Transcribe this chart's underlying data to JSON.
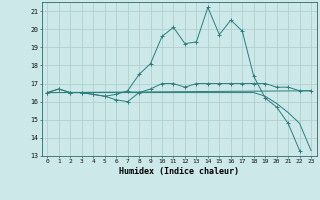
{
  "title": "",
  "xlabel": "Humidex (Indice chaleur)",
  "ylabel": "",
  "background_color": "#cce8e8",
  "grid_color": "#aacccc",
  "line_color": "#2d7d7d",
  "xlim": [
    -0.5,
    23.5
  ],
  "ylim": [
    13,
    21.5
  ],
  "yticks": [
    13,
    14,
    15,
    16,
    17,
    18,
    19,
    20,
    21
  ],
  "xticks": [
    0,
    1,
    2,
    3,
    4,
    5,
    6,
    7,
    8,
    9,
    10,
    11,
    12,
    13,
    14,
    15,
    16,
    17,
    18,
    19,
    20,
    21,
    22,
    23
  ],
  "series": [
    {
      "x": [
        0,
        1,
        2,
        3,
        4,
        5,
        6,
        7,
        8,
        9,
        10,
        11,
        12,
        13,
        14,
        15,
        16,
        17,
        18,
        19,
        20,
        21,
        22,
        23
      ],
      "y": [
        16.5,
        16.7,
        16.5,
        16.5,
        16.4,
        16.3,
        16.1,
        16.0,
        16.5,
        16.7,
        17.0,
        17.0,
        16.8,
        17.0,
        17.0,
        17.0,
        17.0,
        17.0,
        17.0,
        17.0,
        16.8,
        16.8,
        16.6,
        16.6
      ],
      "marker": true,
      "linewidth": 0.7
    },
    {
      "x": [
        0,
        1,
        2,
        3,
        4,
        5,
        6,
        7,
        8,
        9,
        10,
        11,
        12,
        13,
        14,
        15,
        16,
        17,
        18,
        19,
        20,
        21,
        22
      ],
      "y": [
        16.5,
        16.7,
        16.5,
        16.5,
        16.4,
        16.3,
        16.4,
        16.6,
        17.5,
        18.1,
        19.6,
        20.1,
        19.2,
        19.3,
        21.2,
        19.7,
        20.5,
        19.9,
        17.4,
        16.2,
        15.7,
        14.8,
        13.3
      ],
      "marker": true,
      "linewidth": 0.7
    },
    {
      "x": [
        0,
        1,
        2,
        3,
        4,
        5,
        6,
        7,
        8,
        9,
        10,
        11,
        12,
        13,
        14,
        15,
        16,
        17,
        18,
        19,
        20,
        21,
        22,
        23
      ],
      "y": [
        16.5,
        16.5,
        16.5,
        16.5,
        16.5,
        16.5,
        16.5,
        16.5,
        16.5,
        16.5,
        16.5,
        16.5,
        16.5,
        16.5,
        16.5,
        16.5,
        16.5,
        16.5,
        16.5,
        16.3,
        15.9,
        15.4,
        14.8,
        13.3
      ],
      "marker": false,
      "linewidth": 0.7
    },
    {
      "x": [
        0,
        23
      ],
      "y": [
        16.5,
        16.6
      ],
      "marker": false,
      "linewidth": 0.7
    }
  ]
}
